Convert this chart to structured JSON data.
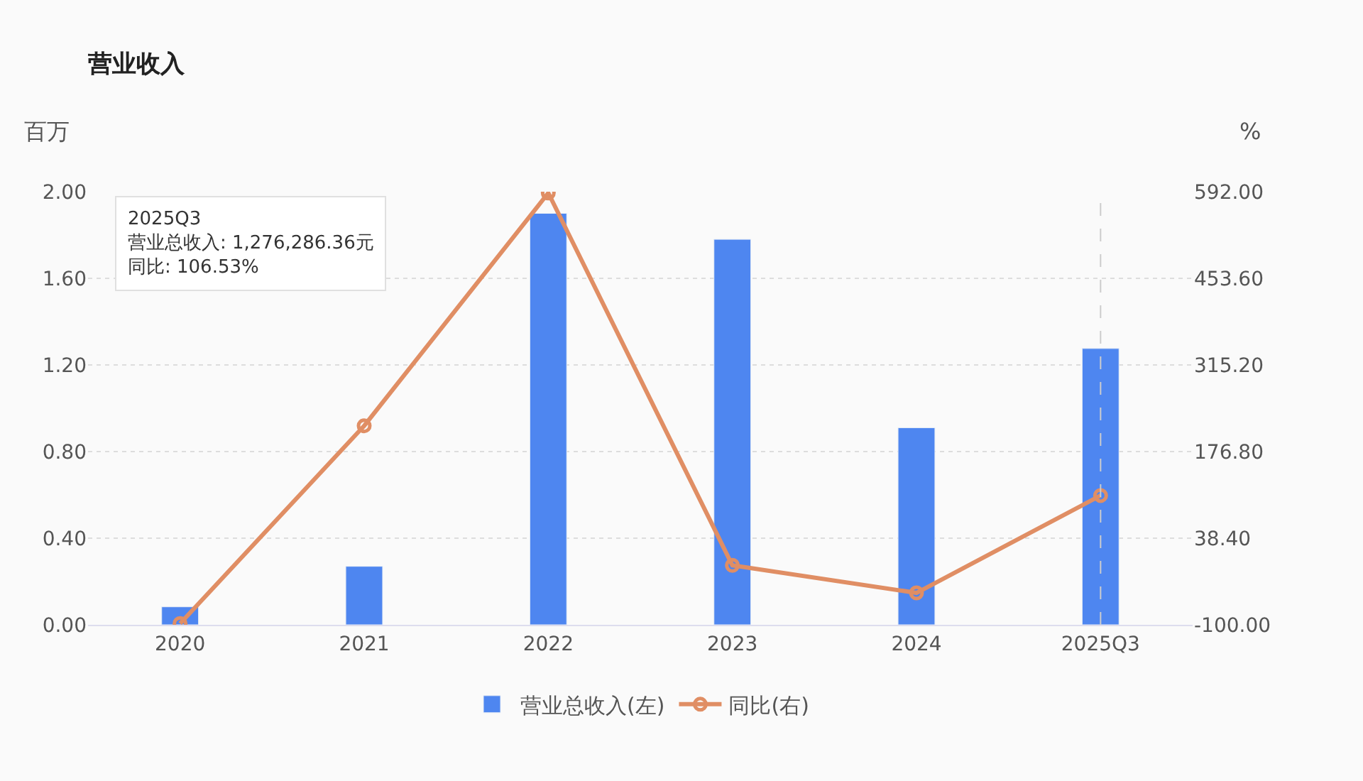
{
  "chart_data": {
    "type": "bar",
    "title": "营业收入",
    "ylabel": "百万",
    "y2label": "%",
    "categories": [
      "2020",
      "2021",
      "2022",
      "2023",
      "2024",
      "2025Q3"
    ],
    "series": [
      {
        "name": "营业总收入(左)",
        "color": "#4e86f0",
        "values": [
          0.083,
          0.27,
          1.9,
          1.78,
          0.91,
          1.276
        ]
      },
      {
        "name": "同比(右)",
        "type": "line",
        "axis": "y2",
        "color": "#e08e64",
        "marker": "circle",
        "line_style": "solid",
        "values": [
          -98,
          218,
          590,
          -5,
          -49,
          106.53
        ]
      }
    ],
    "ylim": [
      0,
      2
    ],
    "yticks": [
      {
        "value": 0,
        "label": "0.00"
      },
      {
        "value": 0.4,
        "label": "0.40"
      },
      {
        "value": 0.8,
        "label": "0.80"
      },
      {
        "value": 1.2,
        "label": "1.20"
      },
      {
        "value": 1.6,
        "label": "1.60"
      },
      {
        "value": 2,
        "label": "2.00"
      }
    ],
    "y2lim": [
      -100,
      592
    ],
    "y2ticks": [
      {
        "value": -100,
        "label": "-100.00"
      },
      {
        "value": 38.4,
        "label": "38.40"
      },
      {
        "value": 176.8,
        "label": "176.80"
      },
      {
        "value": 315.2,
        "label": "315.20"
      },
      {
        "value": 453.6,
        "label": "453.60"
      },
      {
        "value": 592,
        "label": "592.00"
      }
    ],
    "ref_lines": [
      {
        "axis": "x",
        "value": "2025Q3",
        "color": "#cccccc",
        "line_style": "dashed"
      }
    ],
    "annotations": [
      "2025Q3",
      "营业总收入: 1,276,286.36元",
      "同比: 106.53%"
    ],
    "grid": "y",
    "legend": "bottom"
  }
}
